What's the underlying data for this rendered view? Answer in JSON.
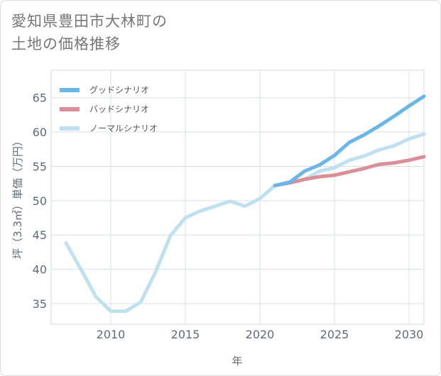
{
  "title_lines": [
    "愛知県豊田市大林町の",
    "土地の価格推移"
  ],
  "chart_data": {
    "type": "line",
    "xlabel": "年",
    "ylabel": "坪（3.3㎡）単価（万円）",
    "xlim": [
      2006,
      2031
    ],
    "ylim": [
      32,
      69
    ],
    "x_ticks": [
      2010,
      2015,
      2020,
      2025,
      2030
    ],
    "y_ticks": [
      35,
      40,
      45,
      50,
      55,
      60,
      65
    ],
    "grid": true,
    "legend_position": "top-left",
    "series": [
      {
        "name": "グッドシナリオ",
        "color": "#6bb6e8",
        "x": [
          2021,
          2022,
          2023,
          2024,
          2025,
          2026,
          2027,
          2028,
          2029,
          2030,
          2031
        ],
        "y": [
          52.2,
          52.7,
          54.3,
          55.2,
          56.6,
          58.5,
          59.6,
          60.9,
          62.3,
          63.8,
          65.2
        ]
      },
      {
        "name": "バッドシナリオ",
        "color": "#dc8e98",
        "x": [
          2021,
          2022,
          2023,
          2024,
          2025,
          2026,
          2027,
          2028,
          2029,
          2030,
          2031
        ],
        "y": [
          52.2,
          52.6,
          53.1,
          53.5,
          53.7,
          54.2,
          54.7,
          55.3,
          55.5,
          55.9,
          56.4
        ]
      },
      {
        "name": "ノーマルシナリオ",
        "color": "#bfe0ef",
        "x": [
          2007,
          2008,
          2009,
          2010,
          2011,
          2012,
          2013,
          2014,
          2015,
          2016,
          2017,
          2018,
          2019,
          2020,
          2021,
          2022,
          2023,
          2024,
          2025,
          2026,
          2027,
          2028,
          2029,
          2030,
          2031
        ],
        "y": [
          43.8,
          40.0,
          36.0,
          33.9,
          33.9,
          35.2,
          39.6,
          44.9,
          47.5,
          48.5,
          49.2,
          49.9,
          49.2,
          50.3,
          52.2,
          52.6,
          53.1,
          54.3,
          54.8,
          55.9,
          56.5,
          57.4,
          58.0,
          59.0,
          59.7
        ]
      }
    ]
  }
}
